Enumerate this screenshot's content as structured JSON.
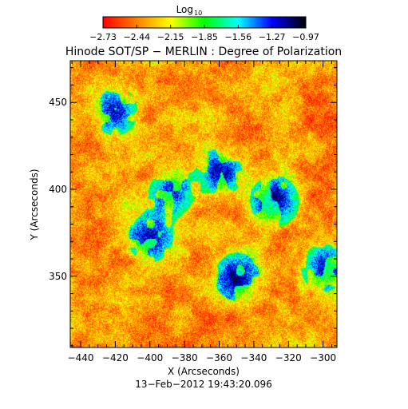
{
  "colorbar": {
    "title_base": "Log",
    "title_sub": "10",
    "tick_labels": [
      "−2.73",
      "−2.44",
      "−2.15",
      "−1.85",
      "−1.56",
      "−1.27",
      "−0.97"
    ],
    "range": [
      -2.73,
      -0.97
    ],
    "colormap": [
      "#ff0000",
      "#ff8000",
      "#ffff00",
      "#00ff00",
      "#00ffff",
      "#0000ff",
      "#000000"
    ]
  },
  "chart_data": {
    "type": "heatmap",
    "title": "Hinode SOT/SP − MERLIN : Degree of Polarization",
    "xlabel": "X (Arcseconds)",
    "ylabel": "Y (Arcseconds)",
    "xlim": [
      -446,
      -292
    ],
    "ylim": [
      309,
      474
    ],
    "x_ticks": [
      -440,
      -420,
      -400,
      -380,
      -360,
      -340,
      -320,
      -300
    ],
    "x_tick_labels": [
      "−440",
      "−420",
      "−400",
      "−380",
      "−360",
      "−340",
      "−320",
      "−300"
    ],
    "y_ticks": [
      350,
      400,
      450
    ],
    "y_tick_labels": [
      "350",
      "400",
      "450"
    ],
    "value_scale": "log10",
    "value_range": [
      -2.73,
      -0.97
    ],
    "high_polarization_regions": [
      {
        "x": -328,
        "y": 393,
        "level": "max"
      },
      {
        "x": -360,
        "y": 410,
        "level": "high"
      },
      {
        "x": -400,
        "y": 372,
        "level": "high"
      },
      {
        "x": -388,
        "y": 398,
        "level": "high"
      },
      {
        "x": -420,
        "y": 445,
        "level": "high"
      },
      {
        "x": -350,
        "y": 350,
        "level": "high"
      },
      {
        "x": -300,
        "y": 355,
        "level": "high"
      }
    ],
    "grid": false
  },
  "footer": {
    "timestamp": "13−Feb−2012 19:43:20.096"
  }
}
